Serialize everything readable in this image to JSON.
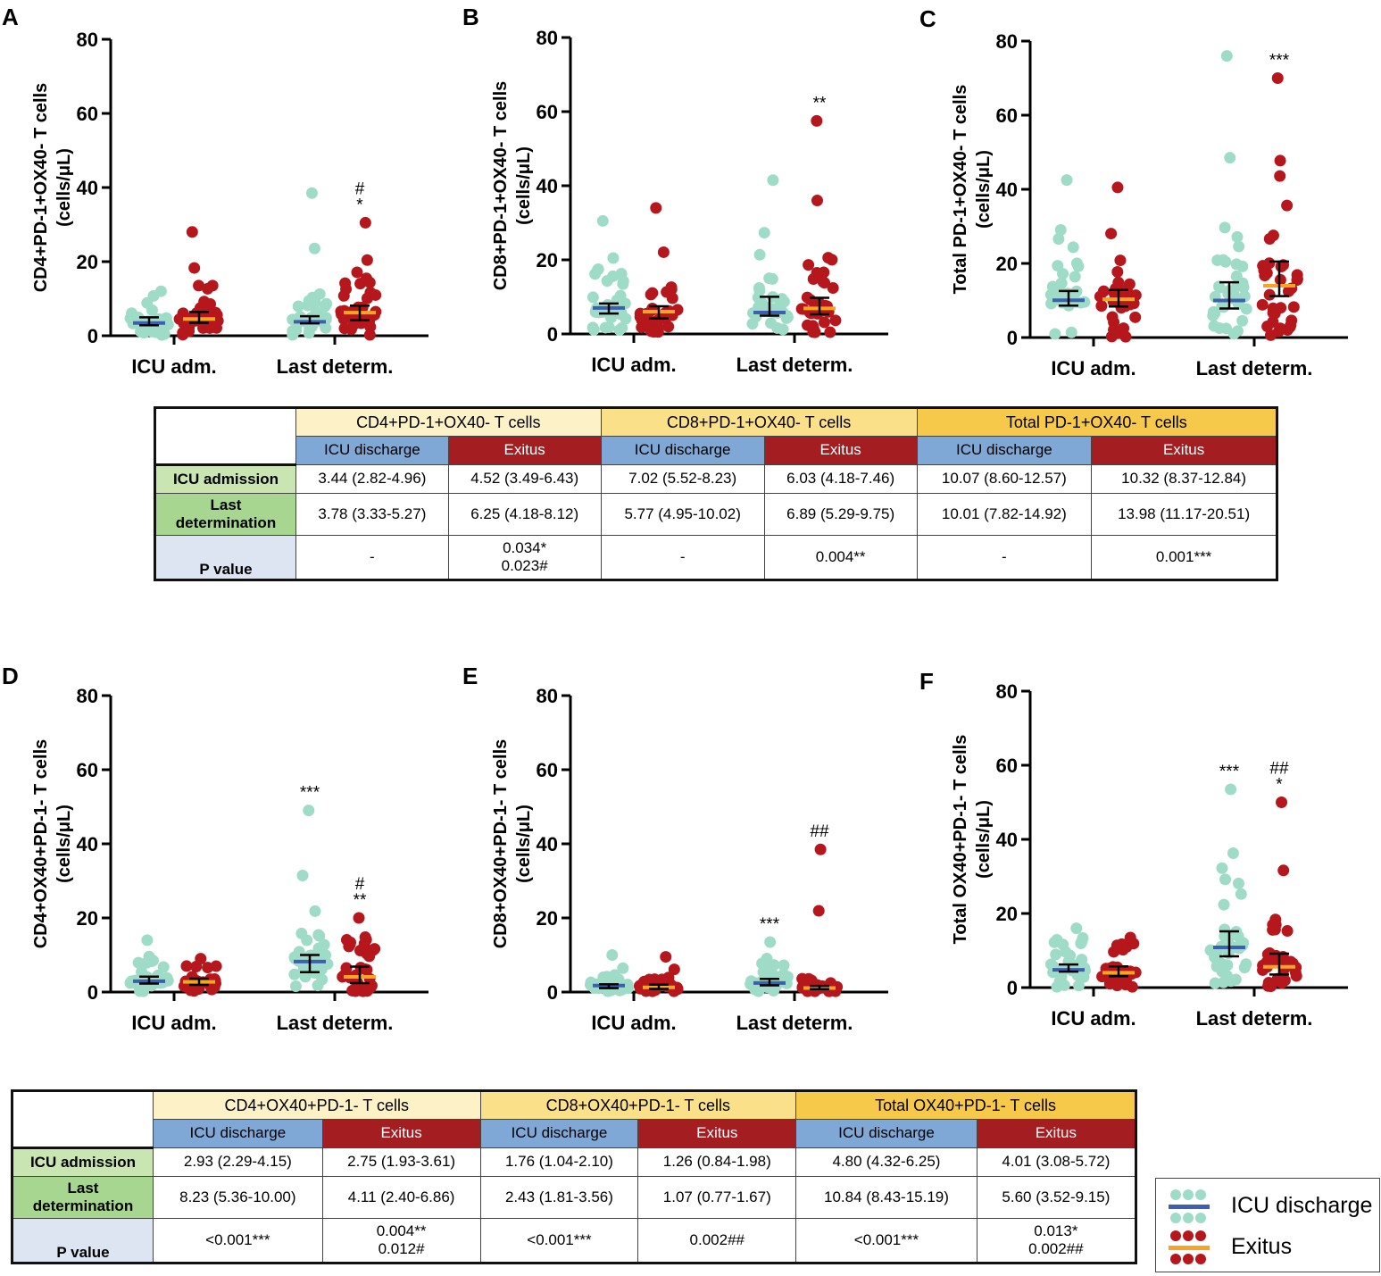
{
  "colors": {
    "discharge_dot": "#9fdcc8",
    "discharge_median": "#3d5fb0",
    "exitus_dot": "#b5171c",
    "exitus_median": "#f5a523",
    "error_bar": "#000000"
  },
  "chart_data": [
    {
      "panel": "A",
      "type": "scatter",
      "ylabel": "CD4+PD-1+OX40- T cells\n(cells/μL)",
      "ylim": [
        0,
        80
      ],
      "yticks": [
        0,
        20,
        40,
        60,
        80
      ],
      "categories": [
        "ICU adm.",
        "Last determ."
      ],
      "series": [
        {
          "name": "ICU discharge",
          "median": [
            3.44,
            3.78
          ],
          "iqr": [
            [
              2.82,
              4.96
            ],
            [
              3.33,
              5.27
            ]
          ],
          "max": [
            12,
            38.5
          ]
        },
        {
          "name": "Exitus",
          "median": [
            4.52,
            6.25
          ],
          "iqr": [
            [
              3.49,
              6.43
            ],
            [
              4.18,
              8.12
            ]
          ],
          "max": [
            28,
            30.5
          ]
        }
      ],
      "annotations": [
        {
          "group": 1,
          "series": 1,
          "text": "#\n*"
        }
      ]
    },
    {
      "panel": "B",
      "type": "scatter",
      "ylabel": "CD8+PD-1+OX40- T cells\n(cells/μL)",
      "ylim": [
        0,
        80
      ],
      "yticks": [
        0,
        20,
        40,
        60,
        80
      ],
      "categories": [
        "ICU adm.",
        "Last determ."
      ],
      "series": [
        {
          "name": "ICU discharge",
          "median": [
            7.02,
            5.77
          ],
          "iqr": [
            [
              5.52,
              8.23
            ],
            [
              4.95,
              10.02
            ]
          ],
          "max": [
            30.5,
            41.5
          ]
        },
        {
          "name": "Exitus",
          "median": [
            6.03,
            6.89
          ],
          "iqr": [
            [
              4.18,
              7.46
            ],
            [
              5.29,
              9.75
            ]
          ],
          "max": [
            34,
            57.5
          ]
        }
      ],
      "annotations": [
        {
          "group": 1,
          "series": 1,
          "text": "**"
        }
      ]
    },
    {
      "panel": "C",
      "type": "scatter",
      "ylabel": "Total PD-1+OX40- T cells\n(cells/μL)",
      "ylim": [
        0,
        80
      ],
      "yticks": [
        0,
        20,
        40,
        60,
        80
      ],
      "categories": [
        "ICU adm.",
        "Last determ."
      ],
      "series": [
        {
          "name": "ICU discharge",
          "median": [
            10.07,
            10.01
          ],
          "iqr": [
            [
              8.6,
              12.57
            ],
            [
              7.82,
              14.92
            ]
          ],
          "max": [
            42.5,
            76
          ]
        },
        {
          "name": "Exitus",
          "median": [
            10.32,
            13.98
          ],
          "iqr": [
            [
              8.37,
              12.84
            ],
            [
              11.17,
              20.51
            ]
          ],
          "max": [
            40.5,
            70
          ]
        }
      ],
      "annotations": [
        {
          "group": 1,
          "series": 1,
          "text": "***"
        }
      ]
    },
    {
      "panel": "D",
      "type": "scatter",
      "ylabel": "CD4+OX40+PD-1- T cells\n(cells/μL)",
      "ylim": [
        0,
        80
      ],
      "yticks": [
        0,
        20,
        40,
        60,
        80
      ],
      "categories": [
        "ICU adm.",
        "Last determ."
      ],
      "series": [
        {
          "name": "ICU discharge",
          "median": [
            2.93,
            8.23
          ],
          "iqr": [
            [
              2.29,
              4.15
            ],
            [
              5.36,
              10.0
            ]
          ],
          "max": [
            14,
            49
          ]
        },
        {
          "name": "Exitus",
          "median": [
            2.75,
            4.11
          ],
          "iqr": [
            [
              1.93,
              3.61
            ],
            [
              2.4,
              6.86
            ]
          ],
          "max": [
            9,
            20
          ]
        }
      ],
      "annotations": [
        {
          "group": 1,
          "series": 0,
          "text": "***"
        },
        {
          "group": 1,
          "series": 1,
          "text": "#\n**"
        }
      ]
    },
    {
      "panel": "E",
      "type": "scatter",
      "ylabel": "CD8+OX40+PD-1- T cells\n(cells/μL)",
      "ylim": [
        0,
        80
      ],
      "yticks": [
        0,
        20,
        40,
        60,
        80
      ],
      "categories": [
        "ICU adm.",
        "Last determ."
      ],
      "series": [
        {
          "name": "ICU discharge",
          "median": [
            1.76,
            2.43
          ],
          "iqr": [
            [
              1.04,
              2.1
            ],
            [
              1.81,
              3.56
            ]
          ],
          "max": [
            10,
            13.5
          ]
        },
        {
          "name": "Exitus",
          "median": [
            1.26,
            1.07
          ],
          "iqr": [
            [
              0.84,
              1.98
            ],
            [
              0.77,
              1.67
            ]
          ],
          "max": [
            9.5,
            38.5
          ]
        }
      ],
      "annotations": [
        {
          "group": 1,
          "series": 0,
          "text": "***"
        },
        {
          "group": 1,
          "series": 1,
          "text": "##"
        }
      ]
    },
    {
      "panel": "F",
      "type": "scatter",
      "ylabel": "Total OX40+PD-1- T cells\n(cells/μL)",
      "ylim": [
        0,
        80
      ],
      "yticks": [
        0,
        20,
        40,
        60,
        80
      ],
      "categories": [
        "ICU adm.",
        "Last determ."
      ],
      "series": [
        {
          "name": "ICU discharge",
          "median": [
            4.8,
            10.84
          ],
          "iqr": [
            [
              4.32,
              6.25
            ],
            [
              8.43,
              15.19
            ]
          ],
          "max": [
            16,
            53.5
          ]
        },
        {
          "name": "Exitus",
          "median": [
            4.01,
            5.6
          ],
          "iqr": [
            [
              3.08,
              5.72
            ],
            [
              3.52,
              9.15
            ]
          ],
          "max": [
            13.5,
            50
          ]
        }
      ],
      "annotations": [
        {
          "group": 1,
          "series": 0,
          "text": "***"
        },
        {
          "group": 1,
          "series": 1,
          "text": "##\n*"
        }
      ]
    }
  ],
  "tables": [
    {
      "groups": [
        "CD4+PD-1+OX40- T cells",
        "CD8+PD-1+OX40- T cells",
        "Total PD-1+OX40- T cells"
      ],
      "sub": [
        "ICU discharge",
        "Exitus"
      ],
      "rows": [
        {
          "label": "ICU admission",
          "cells": [
            "3.44 (2.82-4.96)",
            "4.52 (3.49-6.43)",
            "7.02 (5.52-8.23)",
            "6.03 (4.18-7.46)",
            "10.07 (8.60-12.57)",
            "10.32 (8.37-12.84)"
          ]
        },
        {
          "label": "Last determination",
          "label_lines": [
            "Last",
            "determination"
          ],
          "cells": [
            "3.78 (3.33-5.27)",
            "6.25 (4.18-8.12)",
            "5.77 (4.95-10.02)",
            "6.89 (5.29-9.75)",
            "10.01 (7.82-14.92)",
            "13.98 (11.17-20.51)"
          ]
        },
        {
          "label": "P value",
          "cells": [
            "-",
            "0.034*\n0.023#",
            "-",
            "0.004**",
            "-",
            "0.001***"
          ]
        }
      ]
    },
    {
      "groups": [
        "CD4+OX40+PD-1- T cells",
        "CD8+OX40+PD-1- T cells",
        "Total OX40+PD-1- T cells"
      ],
      "sub": [
        "ICU discharge",
        "Exitus"
      ],
      "rows": [
        {
          "label": "ICU admission",
          "cells": [
            "2.93 (2.29-4.15)",
            "2.75 (1.93-3.61)",
            "1.76 (1.04-2.10)",
            "1.26 (0.84-1.98)",
            "4.80 (4.32-6.25)",
            "4.01 (3.08-5.72)"
          ]
        },
        {
          "label": "Last determination",
          "label_lines": [
            "Last",
            "determination"
          ],
          "cells": [
            "8.23 (5.36-10.00)",
            "4.11 (2.40-6.86)",
            "2.43 (1.81-3.56)",
            "1.07 (0.77-1.67)",
            "10.84 (8.43-15.19)",
            "5.60 (3.52-9.15)"
          ]
        },
        {
          "label": "P value",
          "cells": [
            "<0.001***",
            "0.004**\n0.012#",
            "<0.001***",
            "0.002##",
            "<0.001***",
            "0.013*\n0.002##"
          ]
        }
      ]
    }
  ],
  "legend": {
    "items": [
      "ICU discharge",
      "Exitus"
    ]
  }
}
